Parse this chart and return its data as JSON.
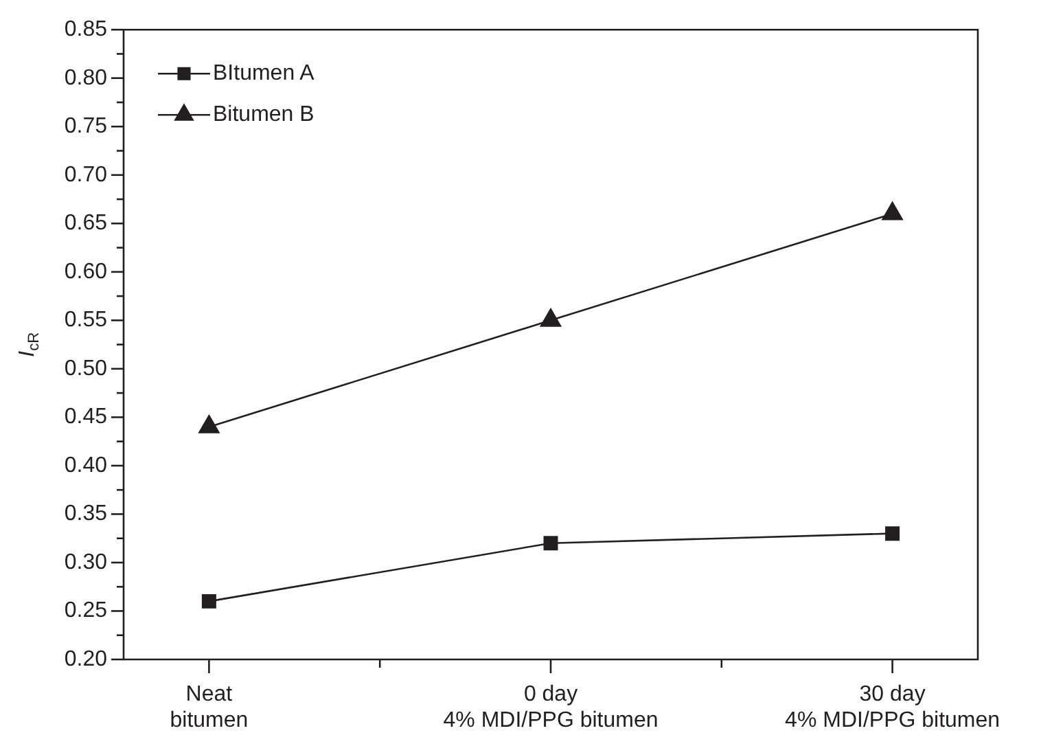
{
  "chart_data": {
    "type": "line",
    "ylabel": "I$_{cR}$",
    "categories": [
      "Neat\nbitumen",
      "0 day\n4% MDI/PPG bitumen",
      "30 day\n4% MDI/PPG bitumen"
    ],
    "series": [
      {
        "name": "BItumen A",
        "color": "#231f20",
        "marker": "square",
        "values": [
          0.26,
          0.32,
          0.33
        ]
      },
      {
        "name": "Bitumen B",
        "color": "#231f20",
        "marker": "triangle",
        "values": [
          0.44,
          0.55,
          0.66
        ]
      }
    ],
    "ylim": [
      0.2,
      0.85
    ],
    "yticks": [
      {
        "value": 0.2,
        "label": "0.20"
      },
      {
        "value": 0.225,
        "label": null
      },
      {
        "value": 0.25,
        "label": "0.25"
      },
      {
        "value": 0.275,
        "label": null
      },
      {
        "value": 0.3,
        "label": "0.30"
      },
      {
        "value": 0.325,
        "label": null
      },
      {
        "value": 0.35,
        "label": "0.35"
      },
      {
        "value": 0.375,
        "label": null
      },
      {
        "value": 0.4,
        "label": "0.40"
      },
      {
        "value": 0.425,
        "label": null
      },
      {
        "value": 0.45,
        "label": "0.45"
      },
      {
        "value": 0.475,
        "label": null
      },
      {
        "value": 0.5,
        "label": "0.50"
      },
      {
        "value": 0.525,
        "label": null
      },
      {
        "value": 0.55,
        "label": "0.55"
      },
      {
        "value": 0.575,
        "label": null
      },
      {
        "value": 0.6,
        "label": "0.60"
      },
      {
        "value": 0.625,
        "label": null
      },
      {
        "value": 0.65,
        "label": "0.65"
      },
      {
        "value": 0.675,
        "label": null
      },
      {
        "value": 0.7,
        "label": "0.70"
      },
      {
        "value": 0.725,
        "label": null
      },
      {
        "value": 0.75,
        "label": "0.75"
      },
      {
        "value": 0.775,
        "label": null
      },
      {
        "value": 0.8,
        "label": "0.80"
      },
      {
        "value": 0.825,
        "label": null
      },
      {
        "value": 0.85,
        "label": "0.85"
      }
    ],
    "grid": false,
    "legend": "top left",
    "line_style": "solid"
  }
}
